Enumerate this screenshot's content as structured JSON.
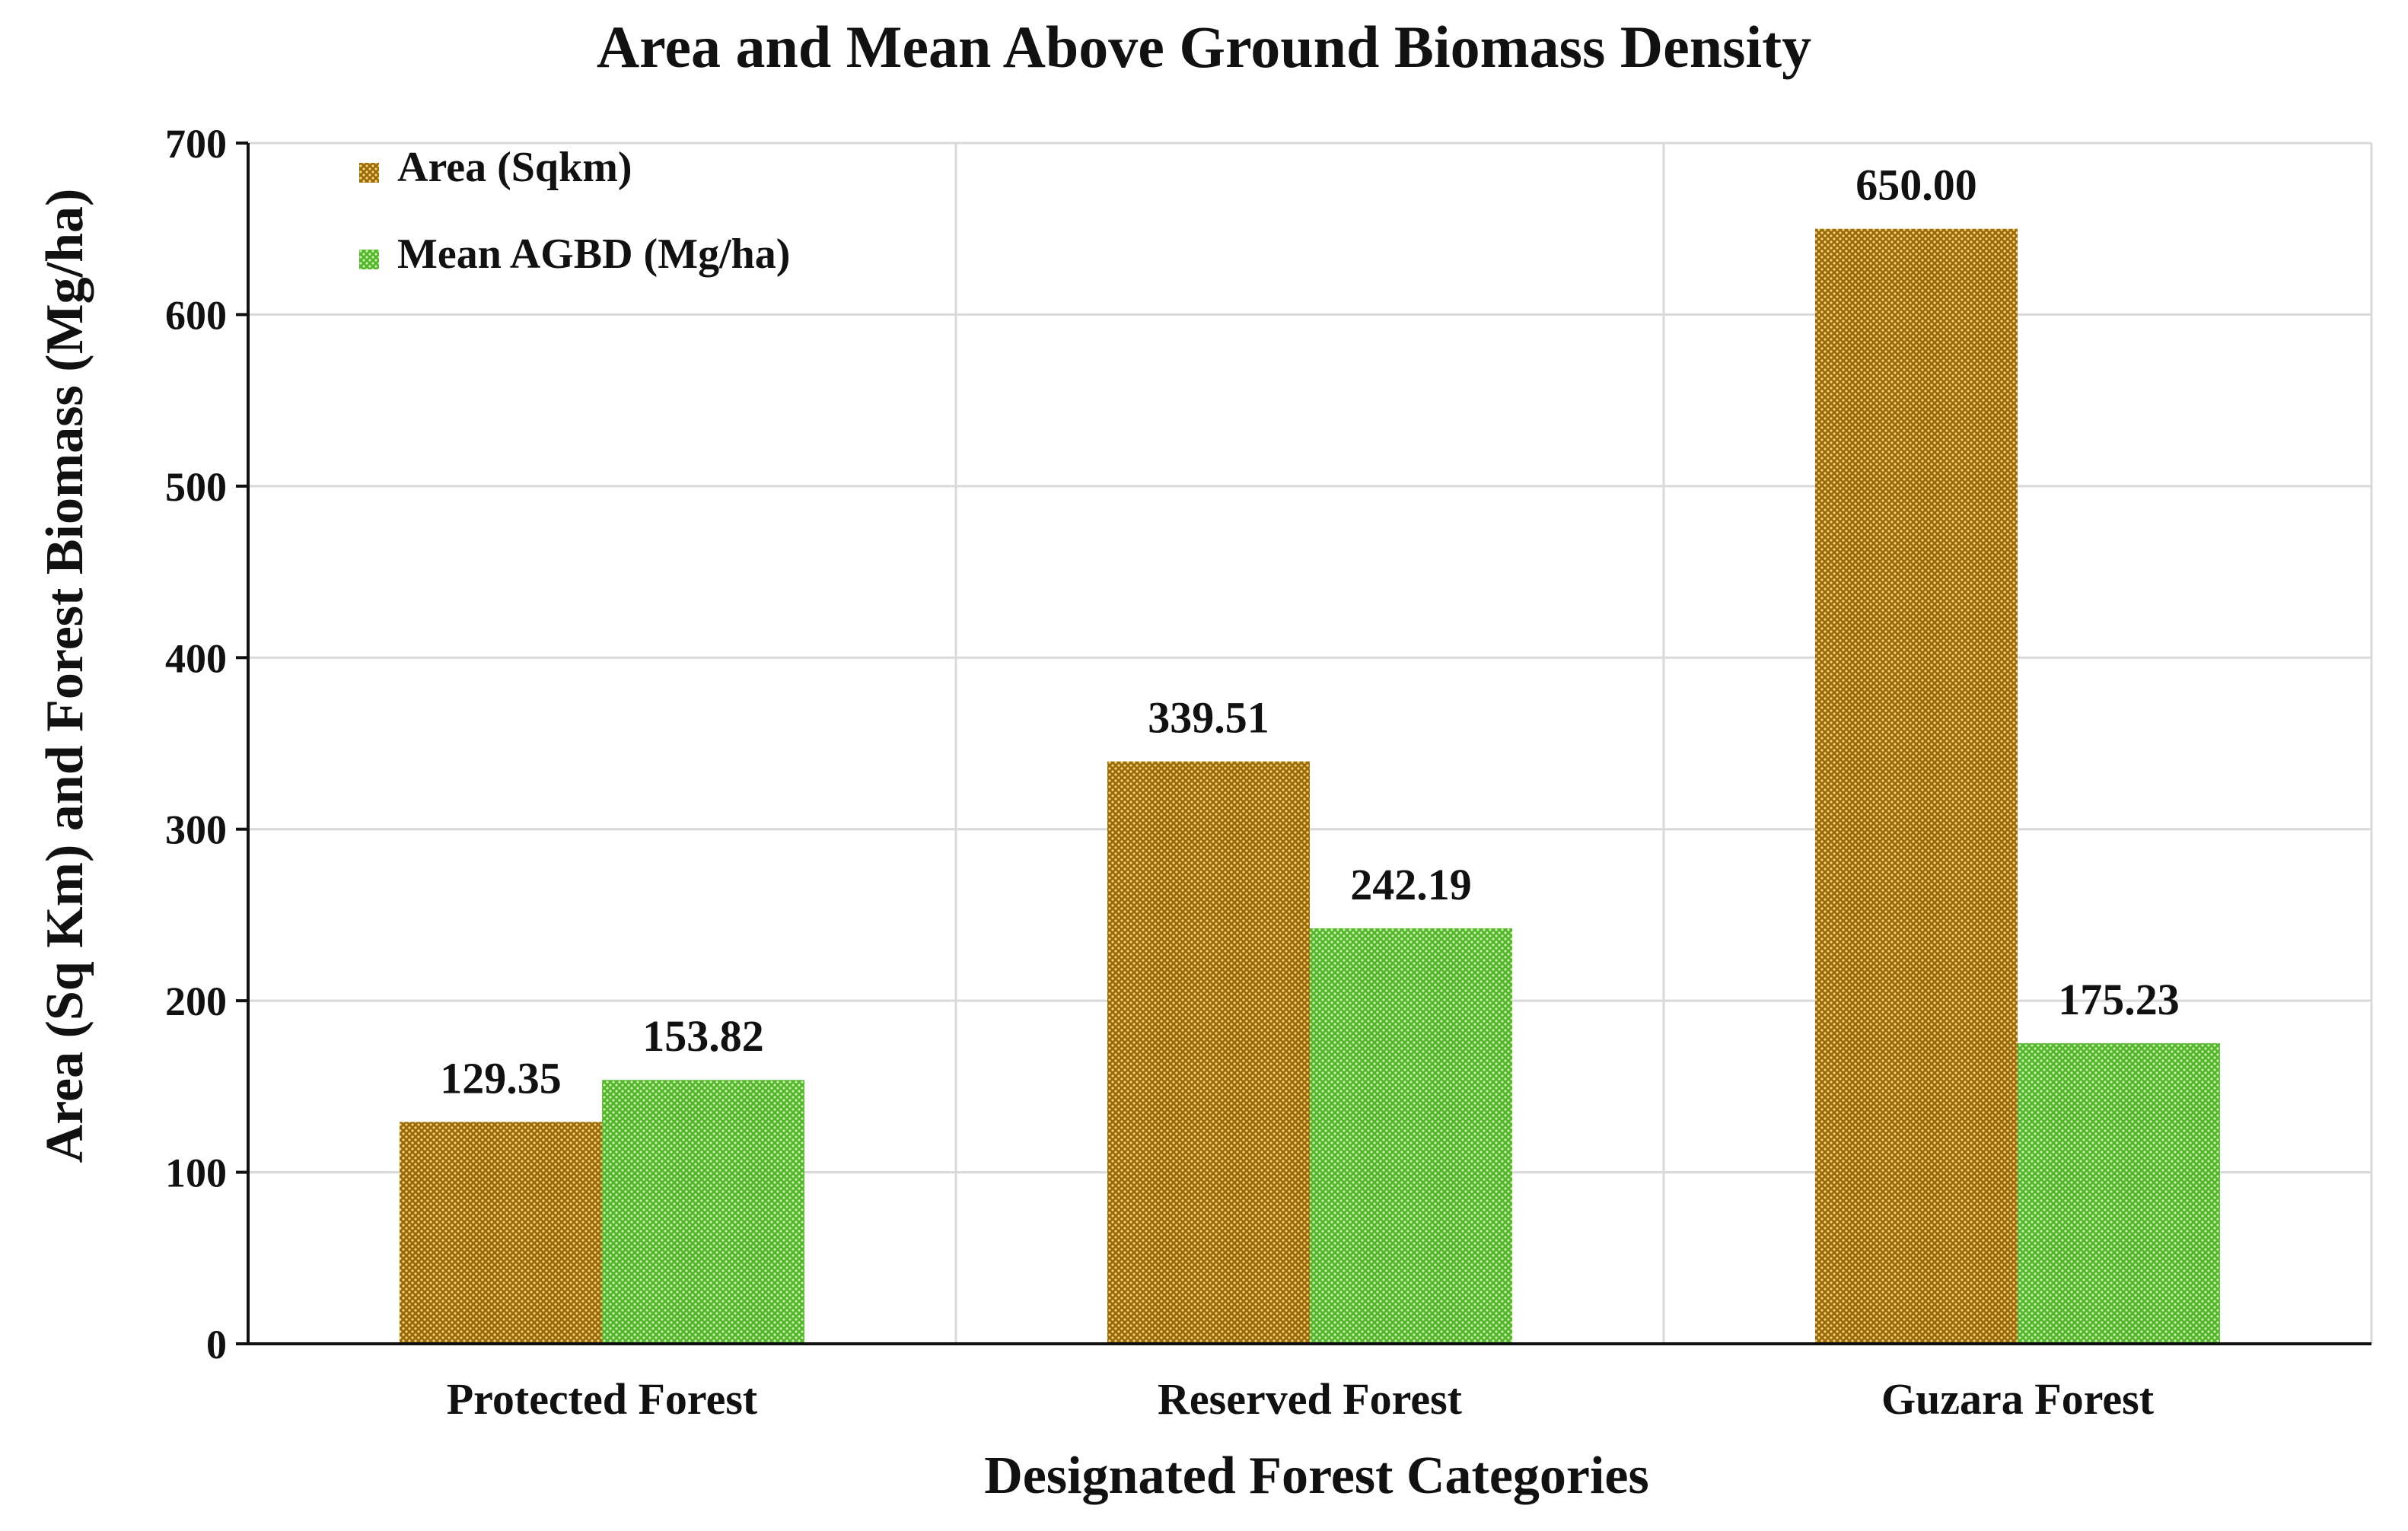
{
  "chart_data": {
    "type": "bar",
    "title": "Area and Mean Above Ground Biomass Density",
    "xlabel": "Designated Forest Categories",
    "ylabel": "Area (Sq Km) and Forest Biomass (Mg/ha)",
    "categories": [
      "Protected Forest",
      "Reserved Forest",
      "Guzara Forest"
    ],
    "series": [
      {
        "name": "Area (Sqkm)",
        "values": [
          129.35,
          339.51,
          650.0
        ],
        "labels": [
          "129.35",
          "339.51",
          "650.00"
        ],
        "color": "#b8860b"
      },
      {
        "name": "Mean AGBD (Mg/ha)",
        "values": [
          153.82,
          242.19,
          175.23
        ],
        "labels": [
          "153.82",
          "242.19",
          "175.23"
        ],
        "color": "#6cc644"
      }
    ],
    "ylim": [
      0,
      700
    ],
    "yticks": [
      0,
      100,
      200,
      300,
      400,
      500,
      600,
      700
    ],
    "ytick_labels": [
      "0",
      "100",
      "200",
      "300",
      "400",
      "500",
      "600",
      "700"
    ],
    "grid": true,
    "legend_position": "top-left"
  }
}
